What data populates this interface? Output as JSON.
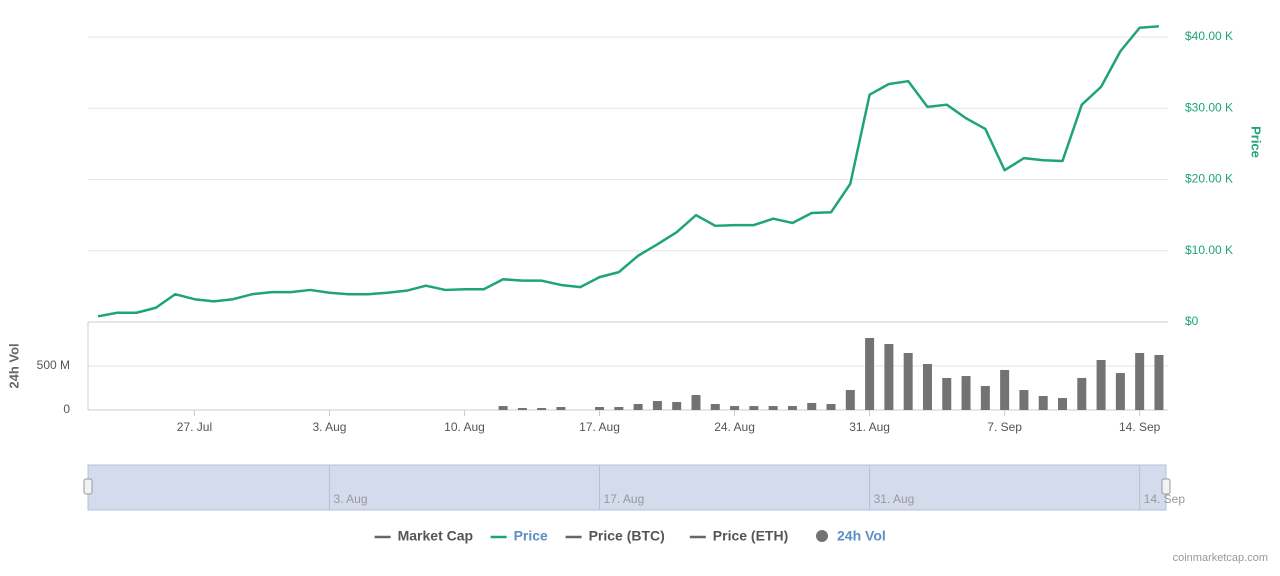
{
  "chart_data": {
    "type": "line",
    "categories": [
      null,
      null,
      null,
      null,
      null,
      "27. Jul",
      null,
      null,
      null,
      null,
      null,
      null,
      "3. Aug",
      null,
      null,
      null,
      null,
      null,
      null,
      "10. Aug",
      null,
      null,
      null,
      null,
      null,
      null,
      "17. Aug",
      null,
      null,
      null,
      null,
      null,
      null,
      "24. Aug",
      null,
      null,
      null,
      null,
      null,
      null,
      "31. Aug",
      null,
      null,
      null,
      null,
      null,
      null,
      "7. Sep",
      null,
      null,
      null,
      null,
      null,
      null,
      "14. Sep",
      null
    ],
    "series": [
      {
        "name": "Market Cap",
        "color": "#666666",
        "visible": false
      },
      {
        "name": "Price",
        "color": "#1fa37a",
        "visible": true,
        "axis": "y",
        "type": "line",
        "values": [
          0.8,
          1.3,
          1.3,
          2.0,
          3.9,
          3.2,
          2.9,
          3.2,
          3.9,
          4.2,
          4.2,
          4.5,
          4.1,
          3.9,
          3.9,
          4.1,
          4.4,
          5.1,
          4.5,
          4.6,
          4.6,
          6.0,
          5.8,
          5.8,
          5.2,
          4.9,
          6.3,
          7.0,
          9.3,
          10.9,
          12.6,
          15.0,
          13.5,
          13.6,
          13.6,
          14.5,
          13.9,
          15.3,
          15.4,
          19.4,
          31.9,
          33.4,
          33.8,
          30.2,
          30.5,
          28.6,
          27.1,
          21.3,
          23.0,
          22.7,
          22.6,
          30.5,
          33.0,
          38.0,
          41.3,
          41.5
        ]
      },
      {
        "name": "Price (BTC)",
        "color": "#666666",
        "visible": false
      },
      {
        "name": "Price (ETH)",
        "color": "#666666",
        "visible": false
      },
      {
        "name": "24h Vol",
        "color": "#737373",
        "visible": true,
        "axis": "y2",
        "type": "bar",
        "values": [
          null,
          null,
          null,
          null,
          null,
          null,
          null,
          null,
          null,
          null,
          null,
          null,
          null,
          null,
          null,
          null,
          null,
          null,
          null,
          null,
          null,
          45,
          23,
          23,
          34,
          null,
          34,
          34,
          68,
          102,
          91,
          170,
          68,
          45,
          45,
          45,
          45,
          80,
          68,
          227,
          818,
          750,
          648,
          523,
          364,
          386,
          273,
          455,
          227,
          159,
          136,
          364,
          568,
          420,
          648,
          625
        ]
      }
    ],
    "ylabel": "Price",
    "ylim": [
      0,
      42
    ],
    "yticks": [
      {
        "value": 0,
        "label": "$0"
      },
      {
        "value": 10,
        "label": "$10.00 K"
      },
      {
        "value": 20,
        "label": "$20.00 K"
      },
      {
        "value": 30,
        "label": "$30.00 K"
      },
      {
        "value": 40,
        "label": "$40.00 K"
      }
    ],
    "y2label": "24h Vol",
    "y2lim": [
      0,
      1000
    ],
    "y2ticks": [
      0,
      {
        "value": 500,
        "label": "500 M"
      }
    ],
    "grid": true,
    "legend": "bottom",
    "navigator": {
      "labels": [
        "3. Aug",
        "17. Aug",
        "31. Aug",
        "14. Sep"
      ]
    },
    "credit": "coinmarketcap.com"
  }
}
